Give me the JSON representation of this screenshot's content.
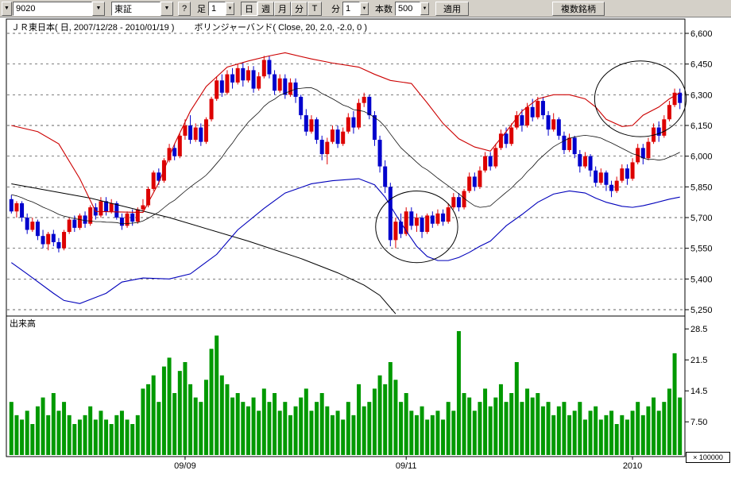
{
  "toolbar": {
    "history_arrow": "▼",
    "symbol_value": "9020",
    "exchange_value": "東証",
    "help_label": "?",
    "interval_label": "足",
    "interval_value": "1",
    "period_buttons": [
      "日",
      "週",
      "月",
      "分",
      "T"
    ],
    "minute_label": "分",
    "minute_value": "1",
    "bars_label": "本数",
    "bars_value": "500",
    "apply_label": "適用",
    "multi_symbol_label": "複数銘柄"
  },
  "header": {
    "series_title": "ＪＲ東日本( 日, 2007/12/28 - 2010/01/19 )",
    "indicator_title": "ボリンジャーバンド( Close, 20, 2.0, -2.0, 0 )"
  },
  "volume_pane": {
    "label": "出来高",
    "multiplier": "× 100000"
  },
  "chart_data": {
    "type": "candlestick",
    "title": "ＪＲ東日本",
    "symbol": "9020",
    "period": "日",
    "date_range": "2007/12/28 - 2010/01/19",
    "indicator": {
      "name": "ボリンジャーバンド",
      "params": "Close, 20, 2.0, -2.0, 0"
    },
    "price_axis": {
      "side": "right",
      "ticks": [
        {
          "value": 6600,
          "label": "6,600"
        },
        {
          "value": 6450,
          "label": "6,450"
        },
        {
          "value": 6300,
          "label": "6,300"
        },
        {
          "value": 6150,
          "label": "6,150"
        },
        {
          "value": 6000,
          "label": "6,000"
        },
        {
          "value": 5850,
          "label": "5,850"
        },
        {
          "value": 5700,
          "label": "5,700"
        },
        {
          "value": 5550,
          "label": "5,550"
        },
        {
          "value": 5400,
          "label": "5,400"
        },
        {
          "value": 5250,
          "label": "5,250"
        }
      ]
    },
    "volume_axis": {
      "unit": 100000,
      "ticks": [
        {
          "value": 28.5,
          "label": "28.5"
        },
        {
          "value": 21.5,
          "label": "21.5"
        },
        {
          "value": 14.5,
          "label": "14.5"
        },
        {
          "value": 7.5,
          "label": "7.50"
        }
      ]
    },
    "x_axis": {
      "ticks": [
        {
          "index": 33,
          "label": "09/09"
        },
        {
          "index": 75,
          "label": "09/11"
        },
        {
          "index": 118,
          "label": "2010"
        }
      ]
    },
    "colors": {
      "up": "#dd0000",
      "down": "#0000cc",
      "volume": "#009900",
      "upper_band": "#cc0000",
      "lower_band": "#0000bb",
      "middle_band": "#111111",
      "long_ma": "#000000",
      "grid": "#333333",
      "toolbar_bg": "#d4d0c8",
      "annotation": "#000000"
    },
    "candles": [
      [
        5790,
        5810,
        5720,
        5730
      ],
      [
        5730,
        5780,
        5700,
        5770
      ],
      [
        5770,
        5780,
        5680,
        5700
      ],
      [
        5700,
        5720,
        5620,
        5640
      ],
      [
        5640,
        5700,
        5630,
        5680
      ],
      [
        5680,
        5690,
        5590,
        5610
      ],
      [
        5610,
        5640,
        5550,
        5570
      ],
      [
        5570,
        5630,
        5540,
        5620
      ],
      [
        5620,
        5640,
        5560,
        5580
      ],
      [
        5580,
        5600,
        5530,
        5550
      ],
      [
        5550,
        5640,
        5540,
        5630
      ],
      [
        5630,
        5700,
        5620,
        5690
      ],
      [
        5690,
        5710,
        5630,
        5650
      ],
      [
        5650,
        5720,
        5640,
        5710
      ],
      [
        5710,
        5730,
        5650,
        5670
      ],
      [
        5670,
        5760,
        5660,
        5750
      ],
      [
        5750,
        5770,
        5690,
        5710
      ],
      [
        5710,
        5800,
        5700,
        5780
      ],
      [
        5780,
        5800,
        5710,
        5730
      ],
      [
        5730,
        5790,
        5720,
        5770
      ],
      [
        5770,
        5780,
        5690,
        5700
      ],
      [
        5700,
        5720,
        5640,
        5660
      ],
      [
        5660,
        5730,
        5650,
        5720
      ],
      [
        5720,
        5740,
        5660,
        5680
      ],
      [
        5680,
        5750,
        5670,
        5740
      ],
      [
        5740,
        5790,
        5730,
        5760
      ],
      [
        5760,
        5850,
        5750,
        5840
      ],
      [
        5840,
        5930,
        5830,
        5920
      ],
      [
        5920,
        5940,
        5860,
        5880
      ],
      [
        5880,
        5990,
        5870,
        5980
      ],
      [
        5980,
        6060,
        5970,
        6040
      ],
      [
        6040,
        6060,
        5980,
        6000
      ],
      [
        6000,
        6110,
        5990,
        6100
      ],
      [
        6100,
        6180,
        6080,
        6150
      ],
      [
        6150,
        6200,
        6060,
        6080
      ],
      [
        6080,
        6160,
        6070,
        6140
      ],
      [
        6140,
        6160,
        6050,
        6070
      ],
      [
        6070,
        6190,
        6060,
        6180
      ],
      [
        6180,
        6290,
        6170,
        6280
      ],
      [
        6280,
        6390,
        6270,
        6370
      ],
      [
        6370,
        6400,
        6290,
        6310
      ],
      [
        6310,
        6420,
        6300,
        6400
      ],
      [
        6400,
        6430,
        6330,
        6360
      ],
      [
        6360,
        6450,
        6350,
        6430
      ],
      [
        6430,
        6460,
        6340,
        6370
      ],
      [
        6370,
        6440,
        6360,
        6420
      ],
      [
        6420,
        6440,
        6310,
        6330
      ],
      [
        6330,
        6410,
        6320,
        6390
      ],
      [
        6390,
        6490,
        6380,
        6470
      ],
      [
        6470,
        6490,
        6380,
        6400
      ],
      [
        6400,
        6420,
        6300,
        6320
      ],
      [
        6320,
        6400,
        6310,
        6380
      ],
      [
        6380,
        6400,
        6280,
        6300
      ],
      [
        6300,
        6380,
        6290,
        6360
      ],
      [
        6360,
        6380,
        6260,
        6290
      ],
      [
        6290,
        6300,
        6180,
        6200
      ],
      [
        6200,
        6230,
        6100,
        6120
      ],
      [
        6120,
        6200,
        6110,
        6180
      ],
      [
        6180,
        6190,
        6060,
        6080
      ],
      [
        6080,
        6100,
        5980,
        6010
      ],
      [
        6010,
        6090,
        5960,
        6070
      ],
      [
        6070,
        6150,
        6060,
        6130
      ],
      [
        6130,
        6150,
        6040,
        6060
      ],
      [
        6060,
        6140,
        6050,
        6120
      ],
      [
        6120,
        6210,
        6110,
        6190
      ],
      [
        6190,
        6220,
        6110,
        6140
      ],
      [
        6140,
        6280,
        6130,
        6260
      ],
      [
        6260,
        6310,
        6240,
        6290
      ],
      [
        6290,
        6300,
        6180,
        6200
      ],
      [
        6200,
        6220,
        6050,
        6080
      ],
      [
        6080,
        6100,
        5920,
        5950
      ],
      [
        5950,
        5980,
        5820,
        5850
      ],
      [
        5850,
        5870,
        5560,
        5590
      ],
      [
        5590,
        5700,
        5550,
        5680
      ],
      [
        5680,
        5720,
        5600,
        5620
      ],
      [
        5620,
        5750,
        5610,
        5730
      ],
      [
        5730,
        5750,
        5640,
        5660
      ],
      [
        5660,
        5720,
        5630,
        5700
      ],
      [
        5700,
        5710,
        5600,
        5630
      ],
      [
        5630,
        5720,
        5620,
        5710
      ],
      [
        5710,
        5730,
        5650,
        5670
      ],
      [
        5670,
        5740,
        5660,
        5720
      ],
      [
        5720,
        5740,
        5660,
        5680
      ],
      [
        5680,
        5770,
        5670,
        5750
      ],
      [
        5750,
        5820,
        5740,
        5800
      ],
      [
        5800,
        5820,
        5730,
        5750
      ],
      [
        5750,
        5840,
        5740,
        5830
      ],
      [
        5830,
        5920,
        5820,
        5900
      ],
      [
        5900,
        5920,
        5830,
        5850
      ],
      [
        5850,
        5950,
        5840,
        5930
      ],
      [
        5930,
        6020,
        5920,
        6000
      ],
      [
        6000,
        6020,
        5930,
        5950
      ],
      [
        5950,
        6060,
        5940,
        6040
      ],
      [
        6040,
        6130,
        6030,
        6110
      ],
      [
        6110,
        6140,
        6040,
        6060
      ],
      [
        6060,
        6160,
        6050,
        6140
      ],
      [
        6140,
        6220,
        6130,
        6200
      ],
      [
        6200,
        6230,
        6120,
        6150
      ],
      [
        6150,
        6260,
        6140,
        6240
      ],
      [
        6240,
        6280,
        6170,
        6190
      ],
      [
        6190,
        6290,
        6180,
        6270
      ],
      [
        6270,
        6290,
        6180,
        6200
      ],
      [
        6200,
        6220,
        6100,
        6130
      ],
      [
        6130,
        6210,
        6120,
        6180
      ],
      [
        6180,
        6190,
        6080,
        6100
      ],
      [
        6100,
        6120,
        6010,
        6030
      ],
      [
        6030,
        6110,
        6020,
        6090
      ],
      [
        6090,
        6100,
        5990,
        6010
      ],
      [
        6010,
        6030,
        5920,
        5950
      ],
      [
        5950,
        6020,
        5940,
        6000
      ],
      [
        6000,
        6010,
        5900,
        5930
      ],
      [
        5930,
        5950,
        5850,
        5870
      ],
      [
        5870,
        5940,
        5860,
        5920
      ],
      [
        5920,
        5930,
        5830,
        5860
      ],
      [
        5860,
        5880,
        5800,
        5830
      ],
      [
        5830,
        5900,
        5820,
        5880
      ],
      [
        5880,
        5960,
        5870,
        5940
      ],
      [
        5940,
        5960,
        5860,
        5890
      ],
      [
        5890,
        5990,
        5880,
        5970
      ],
      [
        5970,
        6060,
        5960,
        6040
      ],
      [
        6040,
        6060,
        5960,
        5990
      ],
      [
        5990,
        6090,
        5980,
        6070
      ],
      [
        6070,
        6160,
        6060,
        6140
      ],
      [
        6140,
        6170,
        6070,
        6100
      ],
      [
        6100,
        6200,
        6090,
        6180
      ],
      [
        6180,
        6270,
        6170,
        6250
      ],
      [
        6250,
        6330,
        6240,
        6310
      ],
      [
        6310,
        6330,
        6230,
        6260
      ]
    ],
    "volume": [
      12,
      9,
      8,
      10,
      7,
      11,
      13,
      9,
      14,
      10,
      12,
      9,
      7,
      8,
      9,
      11,
      8,
      10,
      8,
      7,
      9,
      10,
      8,
      7,
      9,
      15,
      16,
      18,
      12,
      20,
      22,
      14,
      19,
      21,
      16,
      13,
      12,
      17,
      24,
      27,
      18,
      16,
      13,
      14,
      12,
      11,
      13,
      10,
      15,
      12,
      14,
      10,
      12,
      9,
      11,
      13,
      15,
      10,
      12,
      14,
      11,
      9,
      10,
      8,
      12,
      9,
      16,
      11,
      12,
      15,
      18,
      16,
      21,
      17,
      12,
      14,
      10,
      9,
      11,
      8,
      9,
      10,
      8,
      12,
      10,
      28,
      14,
      13,
      10,
      12,
      15,
      11,
      13,
      16,
      12,
      14,
      21,
      12,
      15,
      13,
      14,
      11,
      12,
      9,
      11,
      12,
      9,
      10,
      12,
      8,
      10,
      11,
      8,
      9,
      10,
      7,
      9,
      8,
      10,
      12,
      9,
      11,
      13,
      10,
      12,
      15,
      23,
      13
    ],
    "overlays": {
      "upper_band": [
        [
          0,
          6150
        ],
        [
          5,
          6120
        ],
        [
          9,
          6060
        ],
        [
          13,
          5890
        ],
        [
          16,
          5730
        ],
        [
          25,
          5725
        ],
        [
          28,
          5870
        ],
        [
          31,
          6060
        ],
        [
          34,
          6220
        ],
        [
          37,
          6340
        ],
        [
          41,
          6435
        ],
        [
          45,
          6465
        ],
        [
          49,
          6490
        ],
        [
          52,
          6505
        ],
        [
          57,
          6475
        ],
        [
          61,
          6455
        ],
        [
          66,
          6435
        ],
        [
          69,
          6400
        ],
        [
          72,
          6370
        ],
        [
          76,
          6355
        ],
        [
          79,
          6260
        ],
        [
          82,
          6160
        ],
        [
          85,
          6085
        ],
        [
          88,
          6045
        ],
        [
          91,
          6025
        ],
        [
          94,
          6120
        ],
        [
          97,
          6220
        ],
        [
          100,
          6280
        ],
        [
          103,
          6300
        ],
        [
          106,
          6300
        ],
        [
          109,
          6280
        ],
        [
          111,
          6240
        ],
        [
          113,
          6180
        ],
        [
          116,
          6145
        ],
        [
          118,
          6150
        ],
        [
          120,
          6200
        ],
        [
          123,
          6240
        ],
        [
          125,
          6280
        ],
        [
          127,
          6310
        ]
      ],
      "lower_band": [
        [
          0,
          5480
        ],
        [
          3,
          5425
        ],
        [
          8,
          5330
        ],
        [
          10,
          5295
        ],
        [
          13,
          5280
        ],
        [
          18,
          5330
        ],
        [
          21,
          5385
        ],
        [
          25,
          5405
        ],
        [
          30,
          5400
        ],
        [
          34,
          5425
        ],
        [
          39,
          5520
        ],
        [
          43,
          5640
        ],
        [
          48,
          5745
        ],
        [
          52,
          5820
        ],
        [
          57,
          5865
        ],
        [
          61,
          5880
        ],
        [
          66,
          5890
        ],
        [
          69,
          5860
        ],
        [
          71,
          5800
        ],
        [
          73,
          5715
        ],
        [
          75,
          5635
        ],
        [
          77,
          5560
        ],
        [
          79,
          5510
        ],
        [
          81,
          5490
        ],
        [
          83,
          5490
        ],
        [
          85,
          5505
        ],
        [
          87,
          5530
        ],
        [
          89,
          5560
        ],
        [
          91,
          5585
        ],
        [
          94,
          5660
        ],
        [
          97,
          5715
        ],
        [
          100,
          5775
        ],
        [
          103,
          5815
        ],
        [
          106,
          5830
        ],
        [
          109,
          5820
        ],
        [
          111,
          5795
        ],
        [
          113,
          5775
        ],
        [
          116,
          5755
        ],
        [
          118,
          5750
        ],
        [
          120,
          5758
        ],
        [
          122,
          5770
        ],
        [
          125,
          5790
        ],
        [
          127,
          5800
        ]
      ],
      "long_ma": [
        [
          0,
          5865
        ],
        [
          15,
          5795
        ],
        [
          30,
          5700
        ],
        [
          45,
          5585
        ],
        [
          55,
          5500
        ],
        [
          62,
          5430
        ],
        [
          67,
          5370
        ],
        [
          70,
          5320
        ],
        [
          73,
          5230
        ]
      ],
      "sma_period": 20,
      "sma_warmup_closes": [
        5900,
        5890,
        5880,
        5870,
        5860,
        5850,
        5840,
        5830,
        5820,
        5810,
        5800,
        5800,
        5790,
        5790,
        5780,
        5780,
        5780,
        5780,
        5780,
        5780
      ]
    },
    "annotations": [
      {
        "shape": "ellipse",
        "center_index": 77,
        "center_price": 5655,
        "rx_index": 7.8,
        "ry_price": 175
      },
      {
        "shape": "ellipse",
        "center_index": 119.5,
        "center_price": 6280,
        "rx_index": 8.7,
        "ry_price": 185
      }
    ]
  }
}
